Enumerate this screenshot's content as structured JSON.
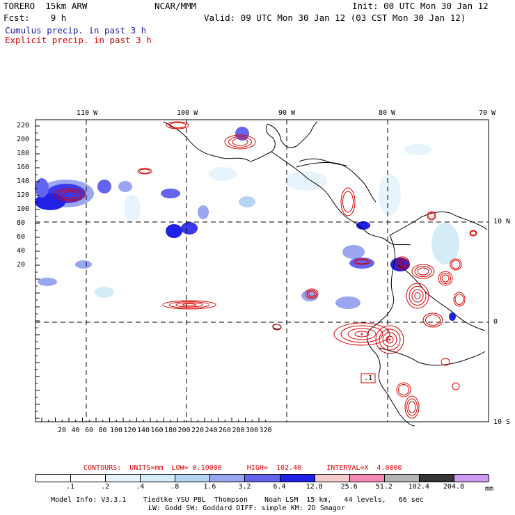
{
  "header": {
    "model": "TORERO  15km ARW",
    "org": "NCAR/MMM",
    "init": "Init: 00 UTC Mon 30 Jan 12",
    "fcst": "Fcst:    9 h",
    "valid": "Valid: 09 UTC Mon 30 Jan 12 (03 CST Mon 30 Jan 12)",
    "cumulus": "Cumulus precip. in past 3 h",
    "explicit": "Explicit precip. in past 3 h"
  },
  "map": {
    "lon_labels": [
      "110 W",
      "100 W",
      "90 W",
      "80 W",
      "70 W"
    ],
    "lat_labels": [
      "10 N",
      "0",
      "10 S"
    ],
    "y_ticks": [
      "220",
      "200",
      "180",
      "160",
      "140",
      "120",
      "100",
      "80",
      "60",
      "40",
      "20"
    ],
    "x_ticks": [
      "20",
      "40",
      "60",
      "80",
      "100",
      "120",
      "140",
      "160",
      "180",
      "200",
      "220",
      "240",
      "260",
      "280",
      "300",
      "320"
    ],
    "box_label": ".1"
  },
  "contours": {
    "label": "CONTOURS:  UNITS=mm  LOW= 0.10000      HIGH=  102.40      INTERVAL=X  4.0000"
  },
  "colorbar": {
    "levels": [
      ".1",
      ".2",
      ".4",
      ".8",
      "1.6",
      "3.2",
      "6.4",
      "12.8",
      "25.6",
      "51.2",
      "102.4",
      "204.8"
    ],
    "unit": "mm",
    "colors": [
      "#ffffff",
      "#ffffff",
      "#e8f4fb",
      "#d4ecf6",
      "#b8d4f2",
      "#9aa6f0",
      "#6464ee",
      "#2020e6",
      "#f5cccc",
      "#f58ab8",
      "#b4b4b4",
      "#363636",
      "#cc9cf0"
    ]
  },
  "footer": {
    "line1": "Model Info: V3.3.1    Tiedtke YSU PBL  Thompson    Noah LSM  15 km,   44 levels,   66 sec",
    "line2": "LW: Godd SW: Goddard DIFF: simple KM: 2D Smagor"
  }
}
